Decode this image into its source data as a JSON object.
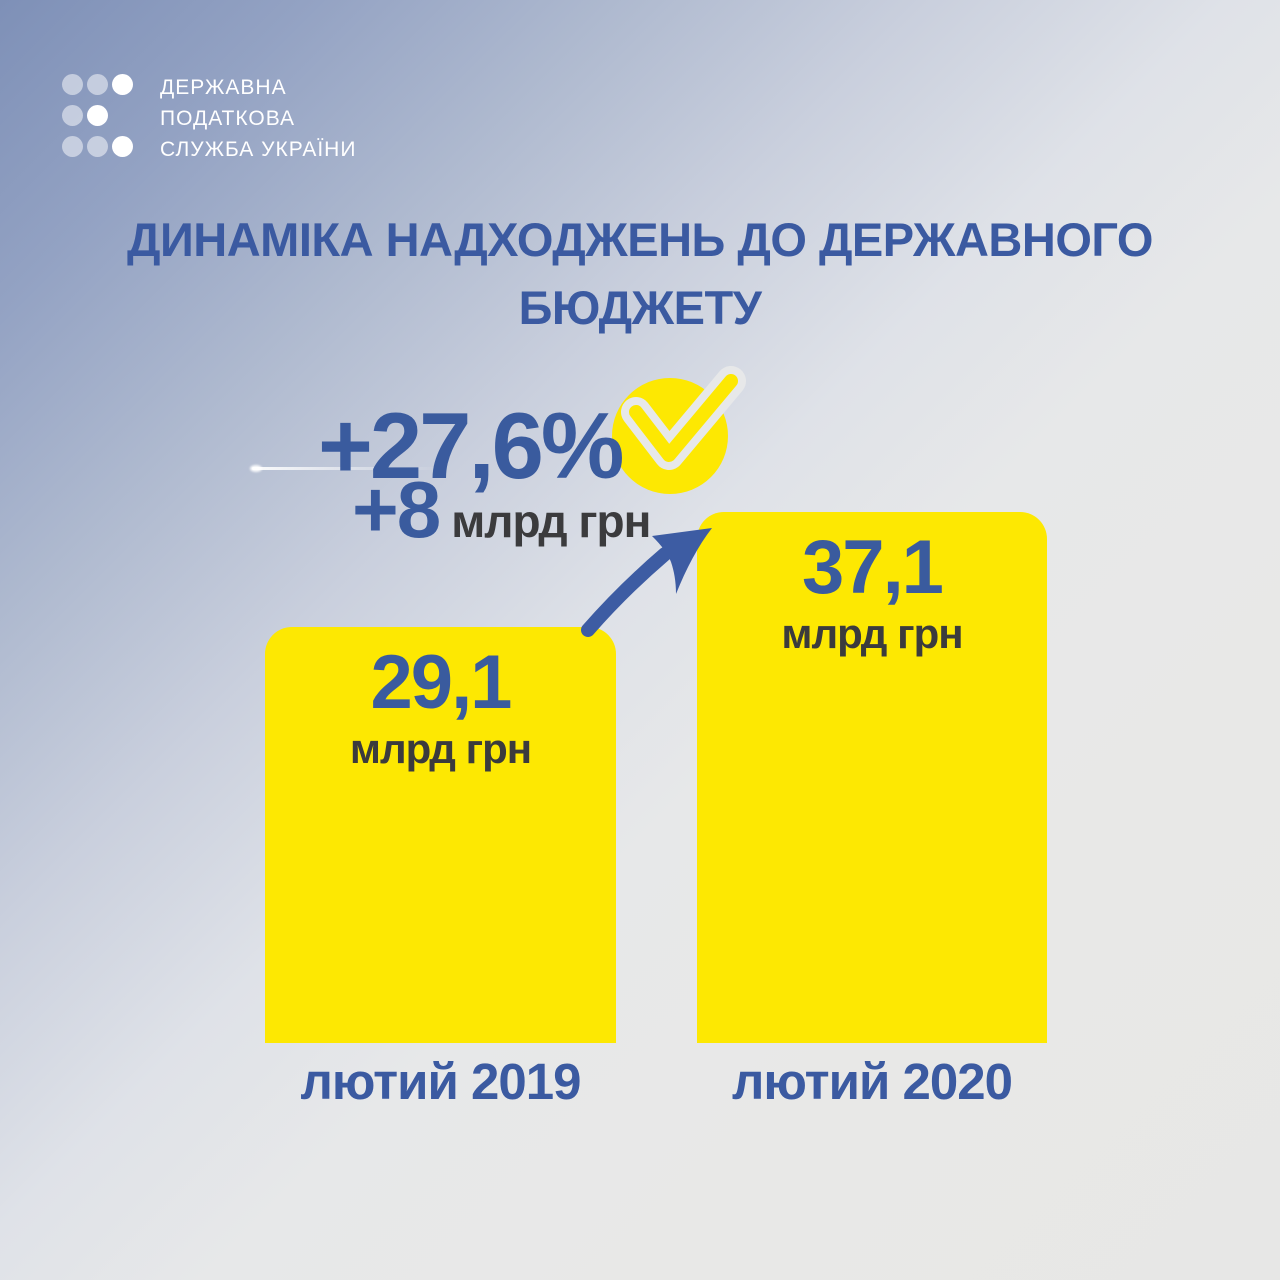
{
  "logo": {
    "line1": "ДЕРЖАВНА",
    "line2": "ПОДАТКОВА",
    "line3": "СЛУЖБА УКРАЇНИ",
    "icon": "dots-grid-logo"
  },
  "title": {
    "line1": "ДИНАМІКА НАДХОДЖЕНЬ ДО ДЕРЖАВНОГО",
    "line2": "БЮДЖЕТУ"
  },
  "annotation": {
    "percent": "+27,6%",
    "delta_value": "+8",
    "delta_unit": "млрд грн",
    "check_icon": "checkmark-in-yellow-circle",
    "arrow_icon": "curved-growth-arrow"
  },
  "bars": [
    {
      "value": "29,1",
      "unit": "млрд грн",
      "category": "лютий 2019"
    },
    {
      "value": "37,1",
      "unit": "млрд грн",
      "category": "лютий 2020"
    }
  ],
  "chart_data": {
    "type": "bar",
    "title": "ДИНАМІКА НАДХОДЖЕНЬ ДО ДЕРЖАВНОГО БЮДЖЕТУ",
    "categories": [
      "лютий 2019",
      "лютий 2020"
    ],
    "values": [
      29.1,
      37.1
    ],
    "unit": "млрд грн",
    "annotations": [
      "+27,6%",
      "+8 млрд грн"
    ],
    "legend": "none",
    "grid": false,
    "bar_color": "#FDE802",
    "value_label_color": "#3A5B9E",
    "unit_label_color": "#3B3B3D",
    "category_label_color": "#3B5AA1",
    "background": "diagonal gradient #7E90B7 to #E7E7E6"
  }
}
